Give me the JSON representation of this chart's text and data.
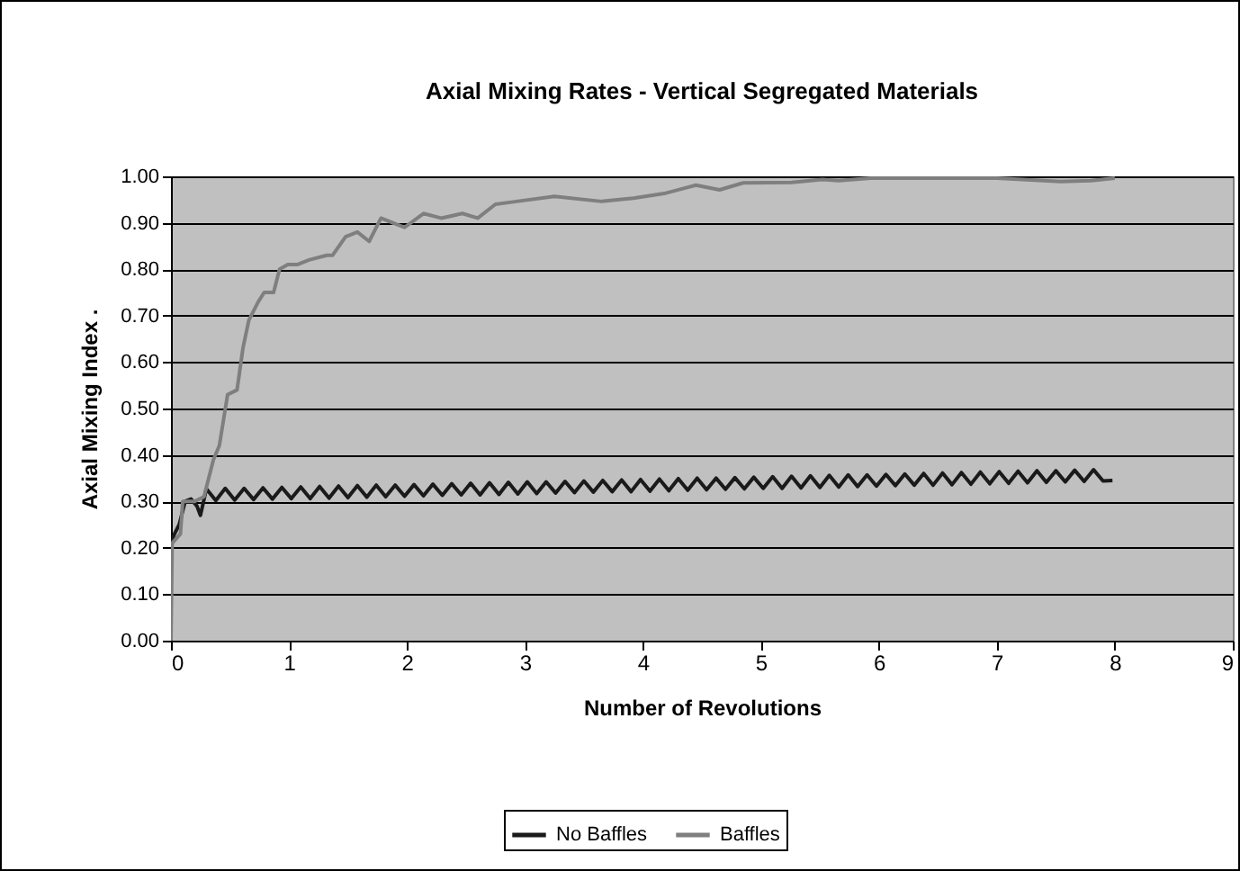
{
  "chart_data": {
    "type": "line",
    "title": "Axial Mixing Rates - Vertical Segregated Materials",
    "xlabel": "Number of Revolutions",
    "ylabel": "Axial Mixing Index  .",
    "xlim": [
      0,
      9
    ],
    "xticks": [
      0,
      1,
      2,
      3,
      4,
      5,
      6,
      7,
      8,
      9
    ],
    "ylim": [
      0,
      1
    ],
    "yticks": [
      {
        "value": 0,
        "label": "0.00"
      },
      {
        "value": 0.1,
        "label": "0.10"
      },
      {
        "value": 0.2,
        "label": "0.20"
      },
      {
        "value": 0.3,
        "label": "0.30"
      },
      {
        "value": 0.4,
        "label": "0.40"
      },
      {
        "value": 0.5,
        "label": "0.50"
      },
      {
        "value": 0.6,
        "label": "0.60"
      },
      {
        "value": 0.7,
        "label": "0.70"
      },
      {
        "value": 0.8,
        "label": "0.80"
      },
      {
        "value": 0.9,
        "label": "0.90"
      },
      {
        "value": 1,
        "label": "1.00"
      }
    ],
    "grid": "y",
    "legend": "bottom",
    "series": [
      {
        "name": "No Baffles",
        "color": "#1a1a1a",
        "x": [
          0,
          0.03,
          0.07,
          0.12,
          0.17,
          0.22,
          0.25,
          0.3,
          0.38,
          0.46,
          0.54,
          0.62,
          0.7,
          0.78,
          0.86,
          0.94,
          1.02,
          1.1,
          1.18,
          1.26,
          1.34,
          1.42,
          1.5,
          1.58,
          1.66,
          1.74,
          1.82,
          1.9,
          1.98,
          2.06,
          2.14,
          2.22,
          2.3,
          2.38,
          2.46,
          2.54,
          2.62,
          2.7,
          2.78,
          2.86,
          2.94,
          3.02,
          3.1,
          3.18,
          3.26,
          3.34,
          3.42,
          3.5,
          3.58,
          3.66,
          3.74,
          3.82,
          3.9,
          3.98,
          4.06,
          4.14,
          4.22,
          4.3,
          4.38,
          4.46,
          4.54,
          4.62,
          4.7,
          4.78,
          4.86,
          4.94,
          5.02,
          5.1,
          5.18,
          5.26,
          5.34,
          5.42,
          5.5,
          5.58,
          5.66,
          5.74,
          5.82,
          5.9,
          5.98,
          6.06,
          6.14,
          6.22,
          6.3,
          6.38,
          6.46,
          6.54,
          6.62,
          6.7,
          6.78,
          6.86,
          6.94,
          7.02,
          7.1,
          7.18,
          7.26,
          7.34,
          7.42,
          7.5,
          7.58,
          7.66,
          7.74,
          7.82,
          7.9,
          7.98
        ],
        "values": [
          0.21,
          0.23,
          0.25,
          0.3,
          0.305,
          0.29,
          0.27,
          0.327,
          0.302,
          0.328,
          0.303,
          0.328,
          0.304,
          0.329,
          0.305,
          0.33,
          0.306,
          0.331,
          0.306,
          0.332,
          0.307,
          0.333,
          0.308,
          0.334,
          0.309,
          0.335,
          0.31,
          0.335,
          0.311,
          0.336,
          0.312,
          0.337,
          0.313,
          0.338,
          0.314,
          0.339,
          0.314,
          0.34,
          0.315,
          0.341,
          0.316,
          0.342,
          0.317,
          0.342,
          0.318,
          0.343,
          0.319,
          0.344,
          0.32,
          0.345,
          0.321,
          0.346,
          0.321,
          0.347,
          0.322,
          0.348,
          0.323,
          0.349,
          0.324,
          0.35,
          0.325,
          0.35,
          0.326,
          0.351,
          0.327,
          0.352,
          0.328,
          0.353,
          0.328,
          0.354,
          0.329,
          0.355,
          0.33,
          0.356,
          0.331,
          0.357,
          0.332,
          0.357,
          0.333,
          0.358,
          0.334,
          0.359,
          0.335,
          0.36,
          0.335,
          0.361,
          0.336,
          0.362,
          0.337,
          0.363,
          0.338,
          0.364,
          0.339,
          0.365,
          0.34,
          0.366,
          0.341,
          0.366,
          0.342,
          0.367,
          0.343,
          0.368,
          0.344,
          0.345
        ]
      },
      {
        "name": "Baffles",
        "color": "#7f7f7f",
        "x": [
          0,
          0.01,
          0.08,
          0.1,
          0.2,
          0.28,
          0.36,
          0.41,
          0.48,
          0.56,
          0.61,
          0.66,
          0.74,
          0.79,
          0.87,
          0.92,
          0.99,
          1.07,
          1.17,
          1.32,
          1.37,
          1.48,
          1.58,
          1.68,
          1.78,
          1.88,
          1.98,
          2.14,
          2.29,
          2.47,
          2.6,
          2.75,
          2.9,
          3.25,
          3.65,
          3.92,
          4.18,
          4.45,
          4.65,
          4.85,
          5.26,
          5.52,
          5.66,
          5.93,
          6.33,
          6.6,
          7.0,
          7.54,
          7.8,
          8.0
        ],
        "values": [
          0,
          0.21,
          0.23,
          0.3,
          0.3,
          0.31,
          0.39,
          0.42,
          0.53,
          0.54,
          0.63,
          0.69,
          0.73,
          0.75,
          0.75,
          0.8,
          0.81,
          0.81,
          0.82,
          0.83,
          0.83,
          0.87,
          0.88,
          0.86,
          0.91,
          0.9,
          0.89,
          0.92,
          0.91,
          0.92,
          0.91,
          0.94,
          0.945,
          0.957,
          0.946,
          0.953,
          0.963,
          0.981,
          0.971,
          0.986,
          0.987,
          0.993,
          0.991,
          0.996,
          0.996,
          0.996,
          0.996,
          0.989,
          0.991,
          0.996
        ]
      }
    ]
  }
}
